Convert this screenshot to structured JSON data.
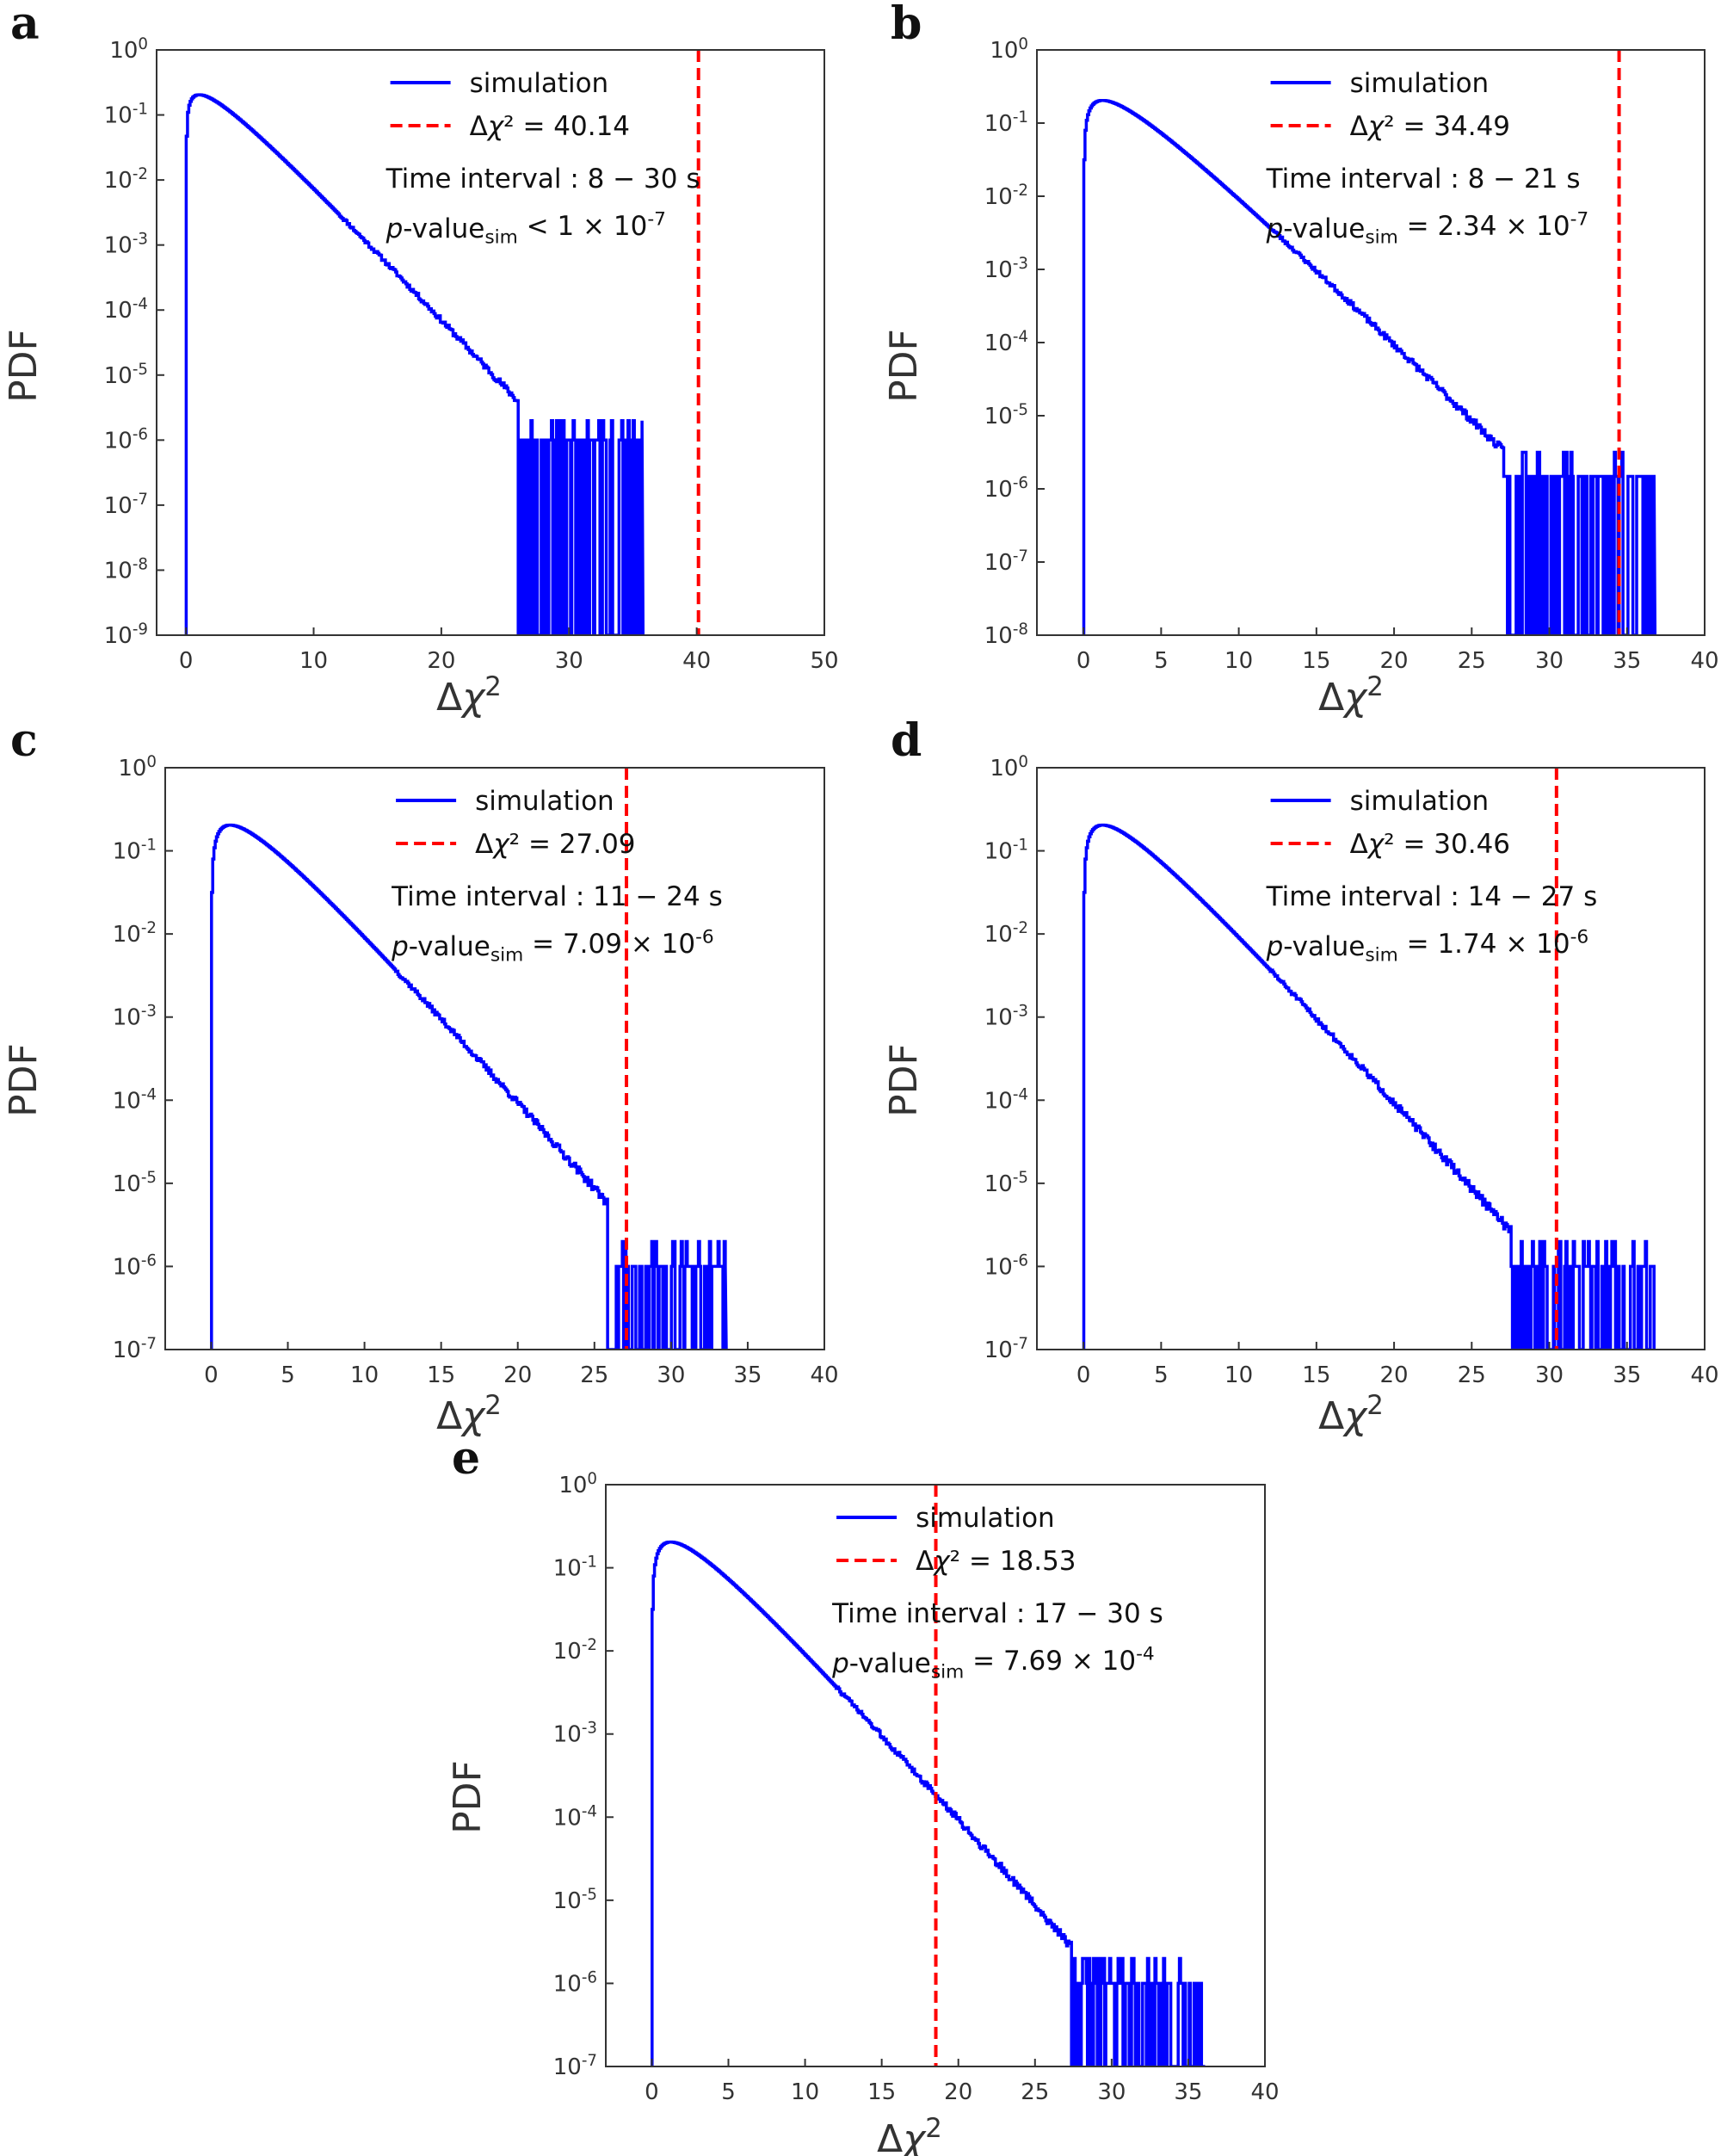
{
  "chart_data": [
    {
      "panel": "a",
      "type": "line",
      "scale_y": "log",
      "xlim": [
        -2.3,
        50
      ],
      "ylim_exp": [
        -9,
        0
      ],
      "xticks": [
        0,
        10,
        20,
        30,
        40,
        50
      ],
      "xticklabels": [
        "0",
        "10",
        "20",
        "30",
        "40",
        "50"
      ],
      "yticklabels": [
        "10^-9",
        "10^-8",
        "10^-7",
        "10^-6",
        "10^-5",
        "10^-4",
        "10^-3",
        "10^-2",
        "10^-1",
        "10^0"
      ],
      "xlabel": "Δχ²",
      "ylabel": "PDF",
      "legend": {
        "simulation": "simulation",
        "observed": "Δχ² = 40.14",
        "interval": "Time interval : 8 − 30 s",
        "pvalue": "p-value_sim < 1 × 10^-7"
      },
      "observed_value": 40.14,
      "series": [
        {
          "name": "simulation",
          "color": "#0000ff",
          "dof": 3,
          "tail_start": 26,
          "tail_end": 35.8
        }
      ]
    },
    {
      "panel": "b",
      "type": "line",
      "scale_y": "log",
      "xlim": [
        -3,
        40
      ],
      "ylim_exp": [
        -8,
        0
      ],
      "xticks": [
        0,
        5,
        10,
        15,
        20,
        25,
        30,
        35,
        40
      ],
      "xticklabels": [
        "0",
        "5",
        "10",
        "15",
        "20",
        "25",
        "30",
        "35",
        "40"
      ],
      "yticklabels": [
        "10^-8",
        "10^-7",
        "10^-6",
        "10^-5",
        "10^-4",
        "10^-3",
        "10^-2",
        "10^-1",
        "10^0"
      ],
      "xlabel": "Δχ²",
      "ylabel": "PDF",
      "legend": {
        "simulation": "simulation",
        "observed": "Δχ² = 34.49",
        "interval": "Time interval : 8 − 21 s",
        "pvalue": "p-value_sim = 2.34 × 10^-7"
      },
      "observed_value": 34.49,
      "series": [
        {
          "name": "simulation",
          "color": "#0000ff",
          "dof": 3.2,
          "tail_start": 27,
          "tail_end": 36.8
        }
      ]
    },
    {
      "panel": "c",
      "type": "line",
      "scale_y": "log",
      "xlim": [
        -3,
        40
      ],
      "ylim_exp": [
        -7,
        0
      ],
      "xticks": [
        0,
        5,
        10,
        15,
        20,
        25,
        30,
        35,
        40
      ],
      "xticklabels": [
        "0",
        "5",
        "10",
        "15",
        "20",
        "25",
        "30",
        "35",
        "40"
      ],
      "yticklabels": [
        "10^-7",
        "10^-6",
        "10^-5",
        "10^-4",
        "10^-3",
        "10^-2",
        "10^-1",
        "10^0"
      ],
      "xlabel": "Δχ²",
      "ylabel": "PDF",
      "legend": {
        "simulation": "simulation",
        "observed": "Δχ² = 27.09",
        "interval": "Time interval : 11 − 24 s",
        "pvalue": "p-value_sim = 7.09 × 10^-6"
      },
      "observed_value": 27.09,
      "series": [
        {
          "name": "simulation",
          "color": "#0000ff",
          "dof": 3.2,
          "tail_start": 25.8,
          "tail_end": 33.6
        }
      ]
    },
    {
      "panel": "d",
      "type": "line",
      "scale_y": "log",
      "xlim": [
        -3,
        40
      ],
      "ylim_exp": [
        -7,
        0
      ],
      "xticks": [
        0,
        5,
        10,
        15,
        20,
        25,
        30,
        35,
        40
      ],
      "xticklabels": [
        "0",
        "5",
        "10",
        "15",
        "20",
        "25",
        "30",
        "35",
        "40"
      ],
      "yticklabels": [
        "10^-7",
        "10^-6",
        "10^-5",
        "10^-4",
        "10^-3",
        "10^-2",
        "10^-1",
        "10^0"
      ],
      "xlabel": "Δχ²",
      "ylabel": "PDF",
      "legend": {
        "simulation": "simulation",
        "observed": "Δχ² = 30.46",
        "interval": "Time interval : 14 − 27 s",
        "pvalue": "p-value_sim = 1.74 × 10^-6"
      },
      "observed_value": 30.46,
      "series": [
        {
          "name": "simulation",
          "color": "#0000ff",
          "dof": 3.2,
          "tail_start": 27.5,
          "tail_end": 36.8
        }
      ]
    },
    {
      "panel": "e",
      "type": "line",
      "scale_y": "log",
      "xlim": [
        -3,
        40
      ],
      "ylim_exp": [
        -7,
        0
      ],
      "xticks": [
        0,
        5,
        10,
        15,
        20,
        25,
        30,
        35,
        40
      ],
      "xticklabels": [
        "0",
        "5",
        "10",
        "15",
        "20",
        "25",
        "30",
        "35",
        "40"
      ],
      "yticklabels": [
        "10^-7",
        "10^-6",
        "10^-5",
        "10^-4",
        "10^-3",
        "10^-2",
        "10^-1",
        "10^0"
      ],
      "xlabel": "Δχ²",
      "ylabel": "PDF",
      "legend": {
        "simulation": "simulation",
        "observed": "Δχ² = 18.53",
        "interval": "Time interval : 17 − 30 s",
        "pvalue": "p-value_sim = 7.69 × 10^-4"
      },
      "observed_value": 18.53,
      "series": [
        {
          "name": "simulation",
          "color": "#0000ff",
          "dof": 3.2,
          "tail_start": 27.3,
          "tail_end": 36.1
        }
      ]
    }
  ],
  "colors": {
    "simulation": "#0000ff",
    "observed": "#ff0000",
    "axes": "#333333"
  }
}
